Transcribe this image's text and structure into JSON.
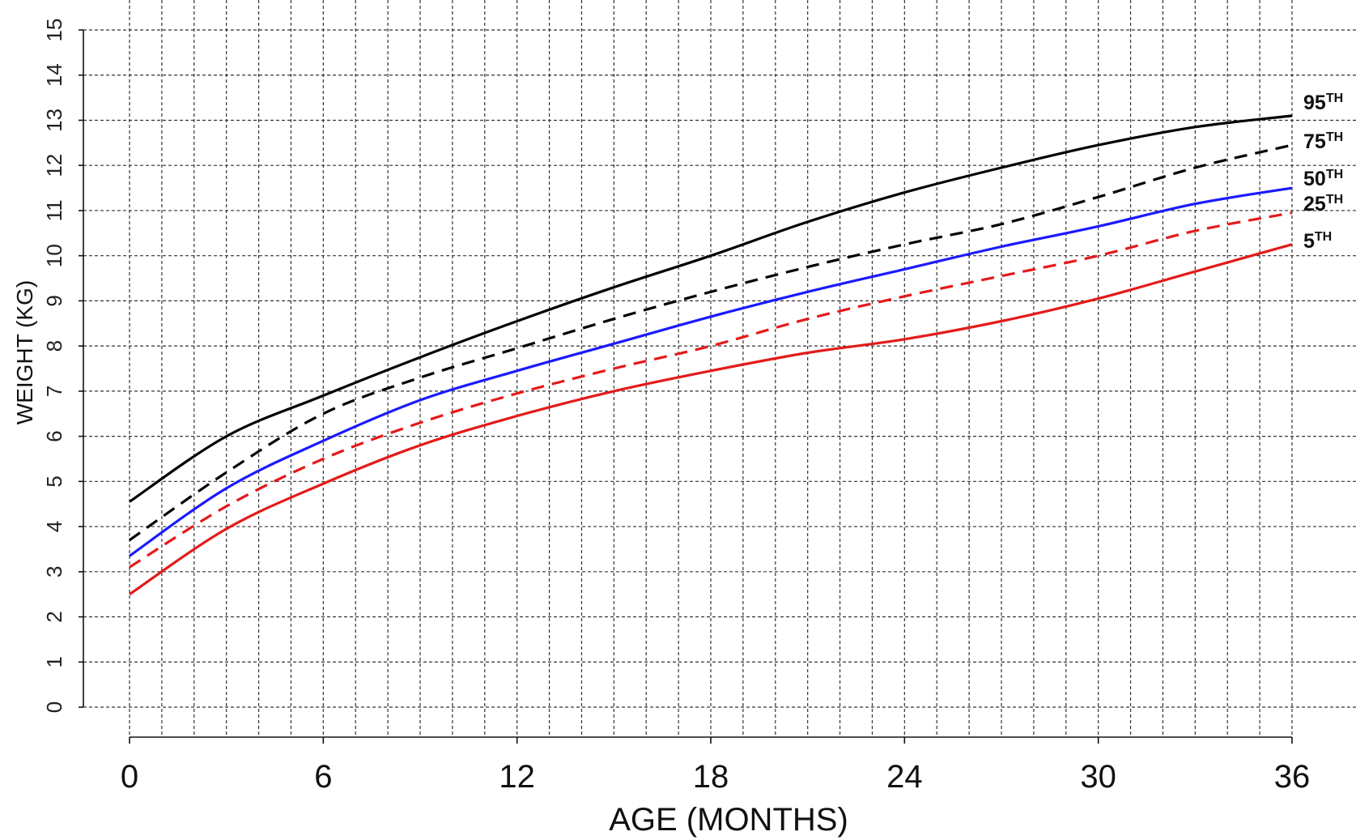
{
  "chart_data": {
    "type": "line",
    "title": "",
    "xlabel": "AGE (MONTHS)",
    "ylabel": "WEIGHT (KG)",
    "xlim": [
      0,
      36
    ],
    "ylim": [
      0,
      15
    ],
    "x_ticks": [
      "0",
      "6",
      "12",
      "18",
      "24",
      "30",
      "36"
    ],
    "y_ticks": [
      "0",
      "1",
      "2",
      "3",
      "4",
      "5",
      "6",
      "7",
      "8",
      "9",
      "10",
      "11",
      "12",
      "13",
      "14",
      "15"
    ],
    "grid": "dashed, 1-month by 1-kg",
    "x": [
      0,
      3,
      6,
      9,
      12,
      15,
      18,
      21,
      24,
      27,
      30,
      33,
      36
    ],
    "series": [
      {
        "name": "95",
        "label_suffix": "TH",
        "color": "#000000",
        "style": "solid",
        "values": [
          4.55,
          6.0,
          6.9,
          7.75,
          8.55,
          9.3,
          10.0,
          10.75,
          11.4,
          11.95,
          12.45,
          12.85,
          13.1
        ]
      },
      {
        "name": "75",
        "label_suffix": "TH",
        "color": "#000000",
        "style": "dashed",
        "values": [
          3.7,
          5.2,
          6.5,
          7.3,
          7.95,
          8.6,
          9.2,
          9.75,
          10.25,
          10.7,
          11.3,
          11.95,
          12.45
        ]
      },
      {
        "name": "50",
        "label_suffix": "TH",
        "color": "#1a1aff",
        "style": "solid",
        "values": [
          3.35,
          4.85,
          5.9,
          6.8,
          7.45,
          8.05,
          8.65,
          9.2,
          9.7,
          10.2,
          10.65,
          11.15,
          11.5
        ]
      },
      {
        "name": "25",
        "label_suffix": "TH",
        "color": "#e41a1a",
        "style": "dashed",
        "values": [
          3.1,
          4.45,
          5.5,
          6.3,
          6.95,
          7.5,
          8.0,
          8.6,
          9.1,
          9.55,
          10.0,
          10.55,
          10.95
        ]
      },
      {
        "name": "5",
        "label_suffix": "TH",
        "color": "#e41a1a",
        "style": "solid",
        "values": [
          2.5,
          3.95,
          4.95,
          5.8,
          6.45,
          7.0,
          7.45,
          7.85,
          8.15,
          8.55,
          9.05,
          9.65,
          10.25
        ]
      }
    ]
  }
}
